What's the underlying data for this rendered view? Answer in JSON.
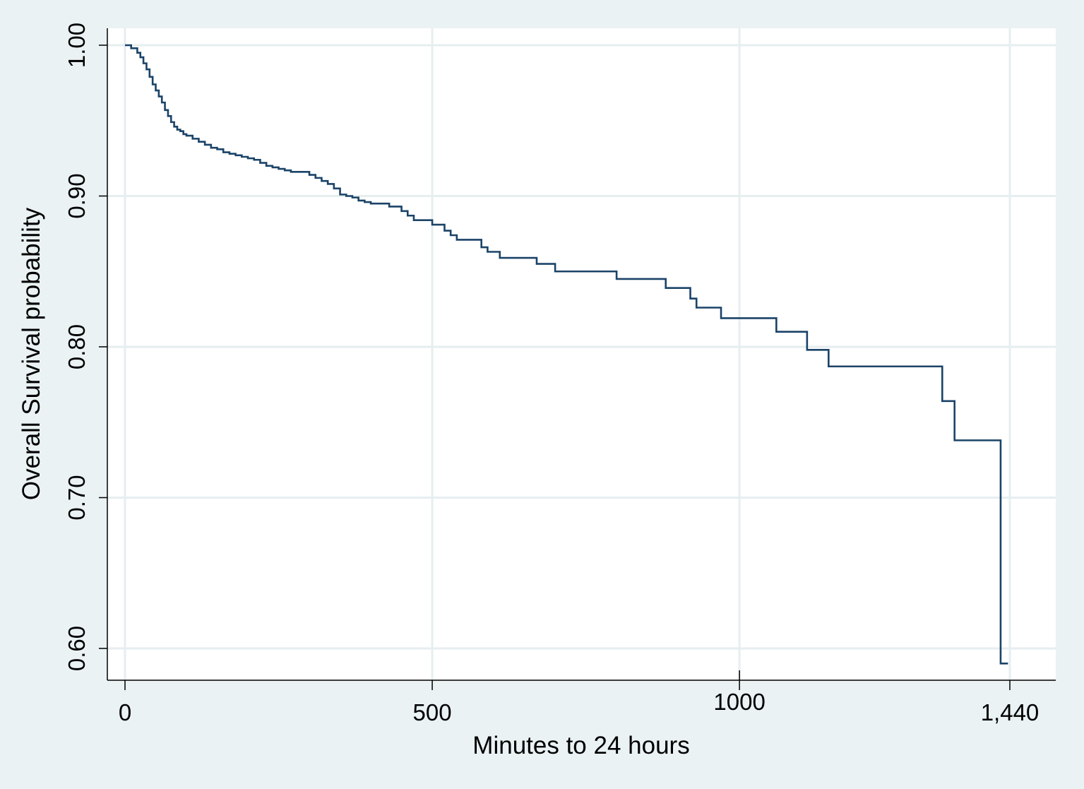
{
  "chart_data": {
    "type": "line",
    "step": true,
    "xlabel": "Minutes to 24 hours",
    "ylabel": "Overall Survival probability",
    "xlim": [
      0,
      1440
    ],
    "ylim": [
      0.6,
      1.0
    ],
    "x_ticks": [
      0,
      500,
      1000,
      1440
    ],
    "x_tick_labels": [
      "0",
      "500",
      "1000",
      "1,440"
    ],
    "y_ticks": [
      0.6,
      0.7,
      0.8,
      0.9,
      1.0
    ],
    "y_tick_labels": [
      "0.60",
      "0.70",
      "0.80",
      "0.90",
      "1.00"
    ],
    "grid": true,
    "legend": "none",
    "colors": {
      "line": "#1b4368",
      "background": "#eaf2f3",
      "plot_background": "#ffffff",
      "grid": "#e6eef0"
    },
    "series": [
      {
        "x": [
          0,
          10,
          20,
          25,
          30,
          35,
          40,
          45,
          50,
          55,
          60,
          65,
          70,
          75,
          80,
          85,
          90,
          95,
          100,
          110,
          120,
          130,
          140,
          150,
          160,
          170,
          180,
          190,
          200,
          210,
          220,
          230,
          240,
          250,
          260,
          270,
          300,
          310,
          320,
          330,
          340,
          350,
          360,
          370,
          380,
          390,
          400,
          420,
          430,
          450,
          460,
          470,
          500,
          520,
          530,
          540,
          580,
          590,
          610,
          670,
          700,
          800,
          880,
          920,
          930,
          970,
          1060,
          1110,
          1145,
          1330,
          1350,
          1425
        ],
        "y": [
          1.0,
          0.998,
          0.995,
          0.992,
          0.988,
          0.984,
          0.979,
          0.974,
          0.97,
          0.966,
          0.962,
          0.957,
          0.953,
          0.949,
          0.946,
          0.944,
          0.943,
          0.941,
          0.94,
          0.938,
          0.936,
          0.934,
          0.932,
          0.931,
          0.929,
          0.928,
          0.927,
          0.926,
          0.925,
          0.924,
          0.922,
          0.92,
          0.919,
          0.918,
          0.917,
          0.916,
          0.914,
          0.912,
          0.91,
          0.908,
          0.905,
          0.901,
          0.9,
          0.899,
          0.897,
          0.896,
          0.895,
          0.895,
          0.893,
          0.89,
          0.887,
          0.884,
          0.881,
          0.877,
          0.874,
          0.871,
          0.866,
          0.863,
          0.859,
          0.855,
          0.85,
          0.845,
          0.839,
          0.832,
          0.826,
          0.819,
          0.81,
          0.798,
          0.787,
          0.764,
          0.738,
          0.59
        ]
      }
    ]
  }
}
